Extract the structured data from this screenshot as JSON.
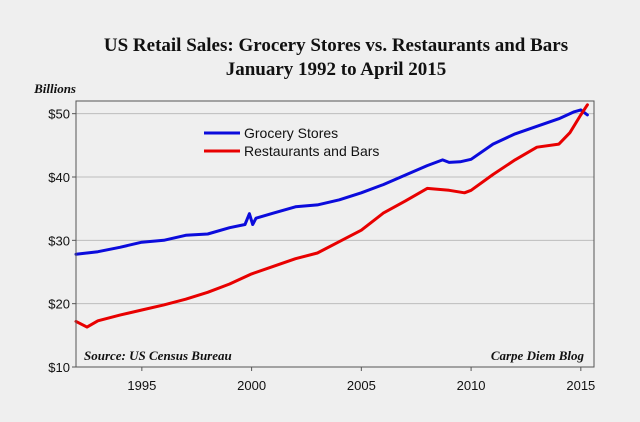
{
  "chart_data": {
    "type": "line",
    "title": "US Retail Sales: Grocery Stores vs. Restaurants and Bars",
    "subtitle": "January 1992 to April 2015",
    "ylabel": "Billions",
    "xlabel": "",
    "ylim": [
      10,
      52
    ],
    "xlim": [
      1992.0,
      2015.6
    ],
    "yticks": [
      10,
      20,
      30,
      40,
      50
    ],
    "ytick_labels": [
      "$10",
      "$20",
      "$30",
      "$40",
      "$50"
    ],
    "xticks": [
      1995,
      2000,
      2005,
      2010,
      2015
    ],
    "xtick_labels": [
      "1995",
      "2000",
      "2005",
      "2010",
      "2015"
    ],
    "grid": "horizontal",
    "legend": "upper-left",
    "source_note": "Source: US Census Bureau",
    "credit_note": "Carpe Diem Blog",
    "series": [
      {
        "name": "Grocery Stores",
        "color": "#0b0bdc",
        "x": [
          1992.0,
          1993.0,
          1994.0,
          1995.0,
          1996.0,
          1997.0,
          1998.0,
          1999.0,
          1999.7,
          1999.9,
          2000.05,
          2000.2,
          2001.0,
          2002.0,
          2003.0,
          2004.0,
          2005.0,
          2006.0,
          2007.0,
          2008.0,
          2008.7,
          2009.0,
          2009.5,
          2010.0,
          2011.0,
          2012.0,
          2013.0,
          2014.0,
          2014.7,
          2015.0,
          2015.3
        ],
        "y": [
          27.8,
          28.2,
          28.9,
          29.7,
          30.0,
          30.8,
          31.0,
          32.0,
          32.5,
          34.2,
          32.5,
          33.5,
          34.3,
          35.3,
          35.6,
          36.4,
          37.5,
          38.8,
          40.3,
          41.8,
          42.7,
          42.3,
          42.4,
          42.8,
          45.2,
          46.8,
          48.0,
          49.2,
          50.3,
          50.6,
          49.8
        ]
      },
      {
        "name": "Restaurants and Bars",
        "color": "#e80000",
        "x": [
          1992.0,
          1992.5,
          1993.0,
          1994.0,
          1995.0,
          1996.0,
          1997.0,
          1998.0,
          1999.0,
          2000.0,
          2001.0,
          2002.0,
          2003.0,
          2004.0,
          2005.0,
          2006.0,
          2007.0,
          2008.0,
          2009.0,
          2009.7,
          2010.0,
          2011.0,
          2012.0,
          2013.0,
          2014.0,
          2014.5,
          2015.0,
          2015.3
        ],
        "y": [
          17.2,
          16.3,
          17.3,
          18.2,
          19.0,
          19.8,
          20.7,
          21.8,
          23.1,
          24.7,
          25.9,
          27.1,
          28.0,
          29.8,
          31.6,
          34.3,
          36.2,
          38.2,
          37.9,
          37.5,
          37.9,
          40.4,
          42.7,
          44.7,
          45.2,
          47.0,
          49.8,
          51.4
        ]
      }
    ]
  }
}
